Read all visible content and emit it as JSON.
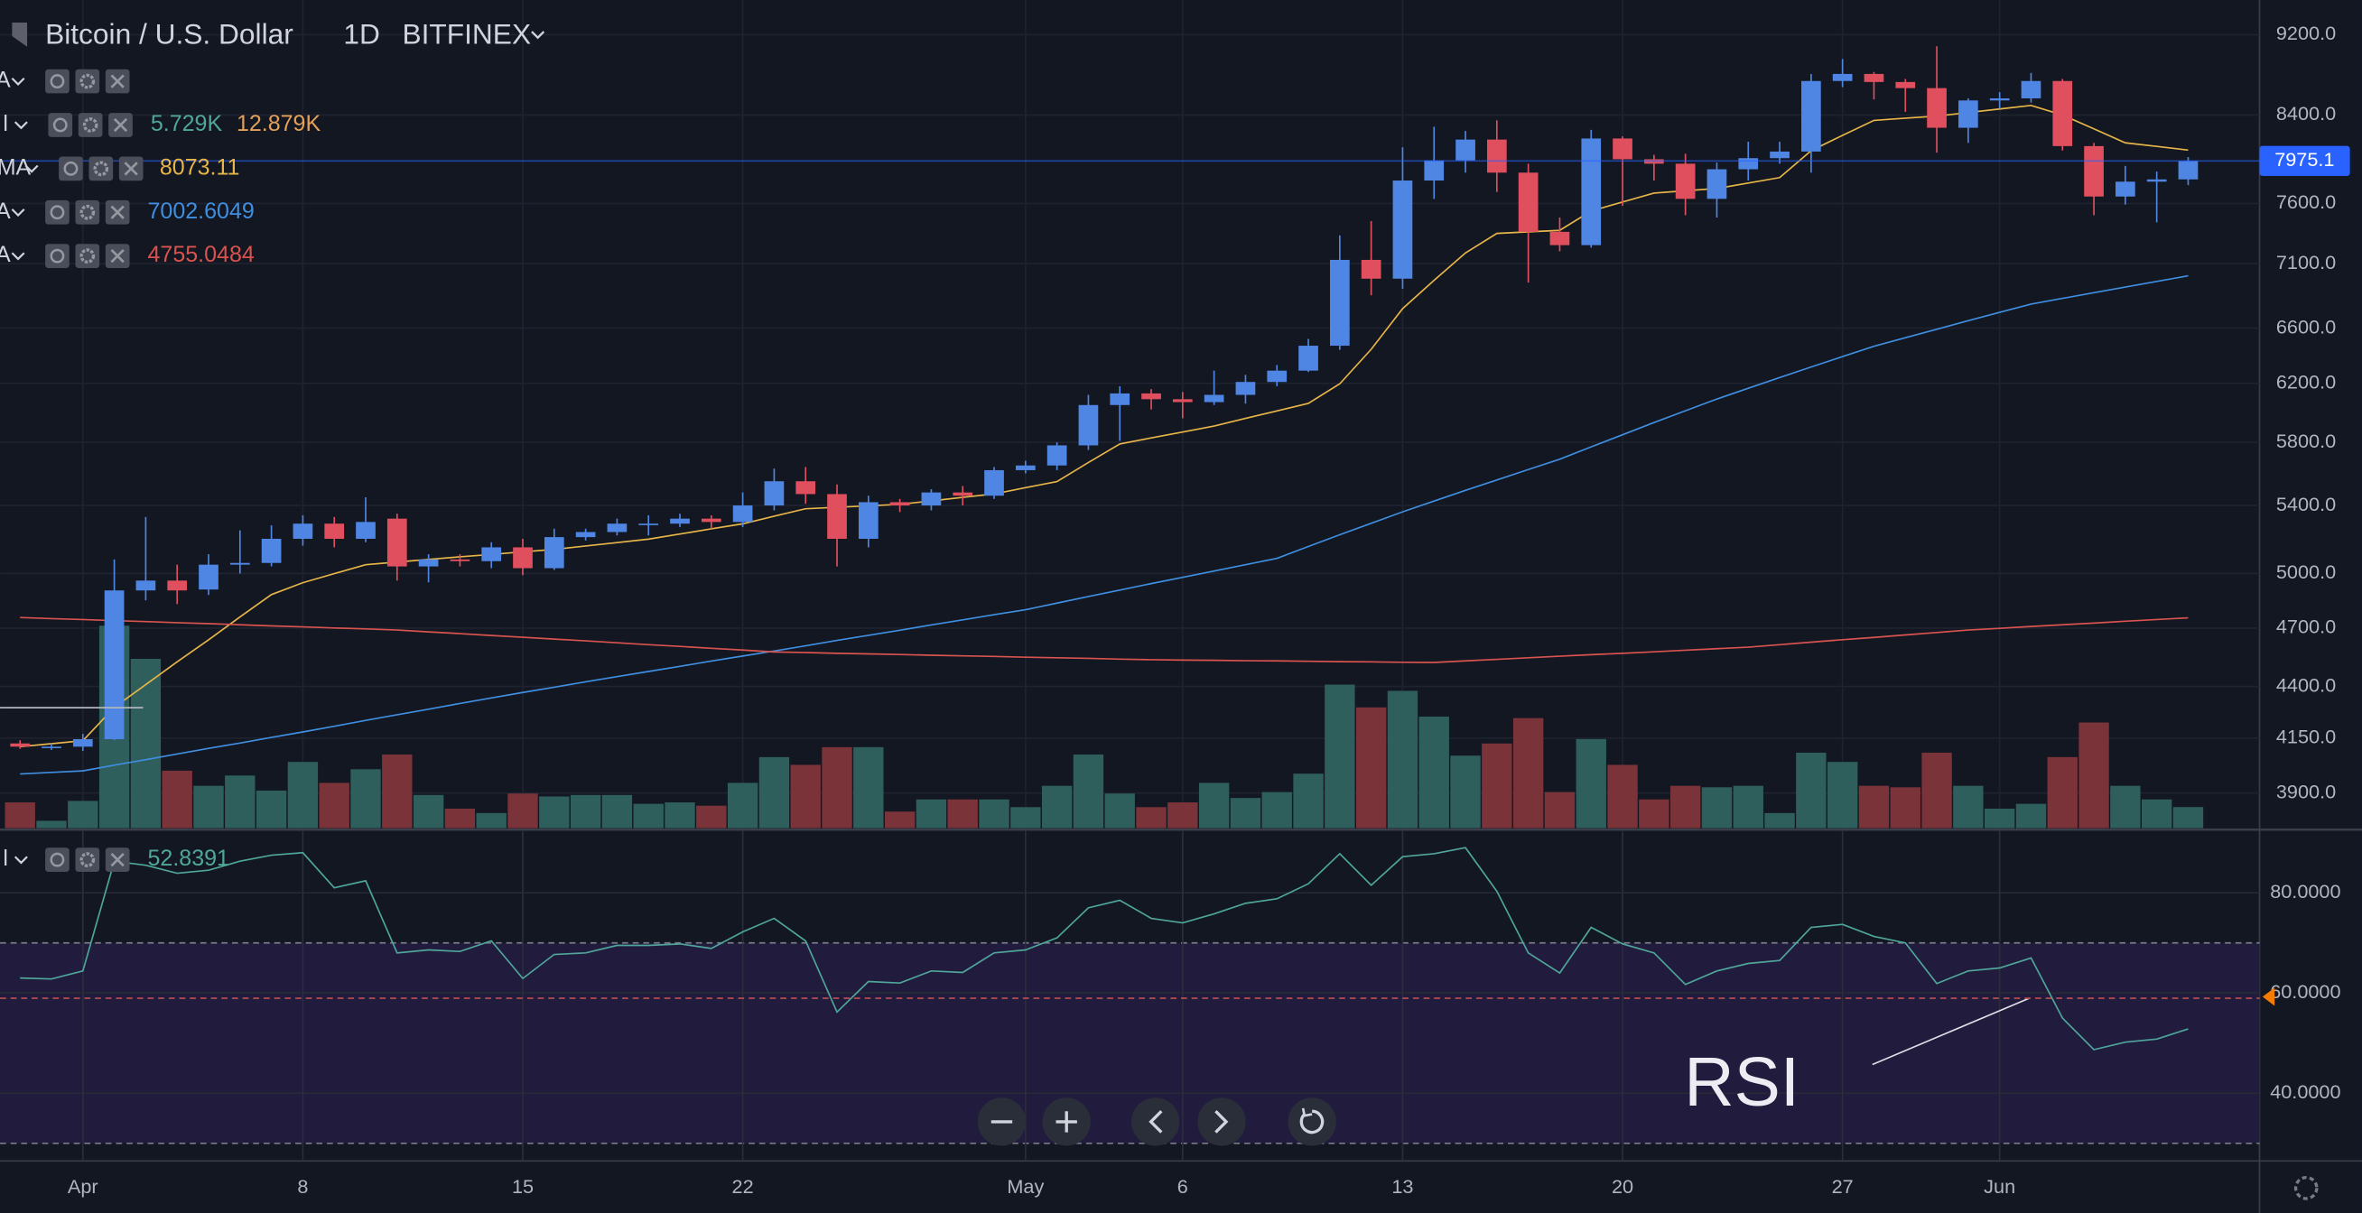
{
  "chart_data": [
    {
      "type": "candlestick",
      "title": "Bitcoin / U.S. Dollar",
      "interval": "1D",
      "exchange": "BITFINEX",
      "hidden_indicator": {
        "name": "A"
      },
      "categories": [
        null,
        null,
        "Apr",
        null,
        null,
        null,
        null,
        null,
        null,
        "8",
        null,
        null,
        null,
        null,
        null,
        null,
        "15",
        null,
        null,
        null,
        null,
        null,
        null,
        "22",
        null,
        null,
        null,
        null,
        null,
        null,
        null,
        null,
        "May",
        null,
        null,
        null,
        null,
        "6",
        null,
        null,
        null,
        null,
        null,
        null,
        "13",
        null,
        null,
        null,
        null,
        null,
        null,
        "20",
        null,
        null,
        null,
        null,
        null,
        null,
        "27",
        null,
        null,
        null,
        null,
        "Jun",
        null,
        null,
        null,
        null,
        null,
        null
      ],
      "open": [
        4125,
        4105,
        4110,
        4145,
        4905,
        4960,
        4910,
        5050,
        5060,
        5200,
        5290,
        5200,
        5320,
        5040,
        5080,
        5070,
        5150,
        5030,
        5210,
        5240,
        5290,
        5290,
        5320,
        5300,
        5400,
        5550,
        5470,
        5200,
        5420,
        5400,
        5480,
        5460,
        5620,
        5650,
        5780,
        6050,
        6130,
        6090,
        6070,
        6120,
        6210,
        6290,
        6470,
        7130,
        6980,
        7800,
        7980,
        8170,
        7870,
        7360,
        7250,
        8180,
        7990,
        7950,
        7640,
        7900,
        8000,
        8060,
        8730,
        8800,
        8720,
        8660,
        8280,
        8540,
        8560,
        8730,
        8110,
        7660,
        7790,
        7810
      ],
      "high": [
        4140,
        4125,
        4170,
        5080,
        5330,
        5050,
        5110,
        5250,
        5280,
        5340,
        5330,
        5450,
        5350,
        5110,
        5110,
        5180,
        5200,
        5260,
        5260,
        5320,
        5340,
        5350,
        5340,
        5480,
        5630,
        5640,
        5530,
        5460,
        5440,
        5500,
        5520,
        5640,
        5680,
        5800,
        6120,
        6180,
        6160,
        6140,
        6290,
        6260,
        6330,
        6520,
        7330,
        7450,
        8100,
        8290,
        8250,
        8350,
        7950,
        7480,
        8260,
        8200,
        8030,
        8040,
        7960,
        8150,
        8150,
        8800,
        8950,
        8820,
        8750,
        9080,
        8560,
        8620,
        8810,
        8750,
        8140,
        7930,
        7880,
        8010
      ],
      "low": [
        4100,
        4095,
        4090,
        4140,
        4850,
        4830,
        4880,
        5000,
        5040,
        5160,
        5150,
        5180,
        4960,
        4950,
        5040,
        5030,
        4990,
        5020,
        5190,
        5220,
        5220,
        5270,
        5260,
        5270,
        5370,
        5410,
        5040,
        5150,
        5360,
        5370,
        5400,
        5440,
        5600,
        5620,
        5750,
        5810,
        6020,
        5960,
        6050,
        6060,
        6180,
        6280,
        6440,
        6850,
        6900,
        7640,
        7870,
        7700,
        6950,
        7200,
        7230,
        7580,
        7800,
        7500,
        7480,
        7800,
        7950,
        7870,
        8670,
        8550,
        8430,
        8050,
        8140,
        8460,
        8520,
        8070,
        7500,
        7590,
        7440,
        7760
      ],
      "close": [
        4110,
        4110,
        4145,
        4905,
        4960,
        4905,
        5050,
        5060,
        5200,
        5290,
        5200,
        5300,
        5040,
        5080,
        5070,
        5150,
        5030,
        5210,
        5240,
        5290,
        5290,
        5320,
        5300,
        5400,
        5550,
        5470,
        5200,
        5420,
        5400,
        5480,
        5460,
        5620,
        5650,
        5780,
        6050,
        6130,
        6090,
        6070,
        6120,
        6210,
        6290,
        6470,
        7130,
        6980,
        7800,
        7980,
        8170,
        7870,
        7360,
        7250,
        8180,
        7990,
        7950,
        7640,
        7900,
        8000,
        8060,
        8730,
        8800,
        8720,
        8660,
        8280,
        8540,
        8560,
        8730,
        8110,
        7660,
        7790,
        7810,
        7975.1
      ],
      "up_color": "#4f86e3",
      "down_color": "#e04f5d",
      "yscale": "log",
      "ylim": [
        3748,
        9568
      ],
      "yticks": [
        {
          "value": 9200,
          "label": "9200.0"
        },
        {
          "value": 8400,
          "label": "8400.0"
        },
        {
          "value": 7600,
          "label": "7600.0"
        },
        {
          "value": 7100,
          "label": "7100.0"
        },
        {
          "value": 6600,
          "label": "6600.0"
        },
        {
          "value": 6200,
          "label": "6200.0"
        },
        {
          "value": 5800,
          "label": "5800.0"
        },
        {
          "value": 5400,
          "label": "5400.0"
        },
        {
          "value": 5000,
          "label": "5000.0"
        },
        {
          "value": 4700,
          "label": "4700.0"
        },
        {
          "value": 4400,
          "label": "4400.0"
        },
        {
          "value": 4150,
          "label": "4150.0"
        },
        {
          "value": 3900,
          "label": "3900.0"
        }
      ],
      "grid": true,
      "price_line_color": "#2962ff",
      "volume": {
        "name": "l",
        "values": [
          7,
          2,
          7.4,
          55,
          46,
          15.6,
          11.5,
          14.3,
          10.2,
          18,
          12.3,
          16,
          20,
          9,
          5.3,
          4.1,
          9.4,
          8.6,
          9,
          9,
          6.6,
          7,
          6.1,
          12.3,
          19.3,
          17.2,
          22,
          22,
          4.5,
          7.8,
          7.8,
          7.8,
          5.7,
          11.5,
          20,
          9.4,
          5.7,
          7,
          12.3,
          8.2,
          9.8,
          14.8,
          39,
          32.8,
          37.3,
          30.3,
          19.7,
          23,
          29.9,
          9.8,
          24.2,
          17.2,
          7.8,
          11.5,
          11.1,
          11.5,
          4.1,
          20.5,
          18,
          11.5,
          11.1,
          20.5,
          11.5,
          5.3,
          6.6,
          19.3,
          28.7,
          11.5,
          7.8,
          5.729
        ],
        "last_label": "5.729K",
        "ma_label": "12.879K",
        "vlim": [
          0,
          225
        ],
        "up_color": "#2f5f5d",
        "down_color": "#7a3439",
        "label_color": "#4fa69a",
        "ma_color": "#e3a05a"
      },
      "series": [
        {
          "name": "MA",
          "color": "#e7b548",
          "values": [
            4110,
            4124,
            4138,
            4297,
            4409,
            4524,
            4638,
            4760,
            4882,
            4948,
            4999,
            5050,
            5065,
            5080,
            5095,
            5109,
            5124,
            5138,
            5158,
            5178,
            5198,
            5228,
            5259,
            5289,
            5335,
            5380,
            5389,
            5398,
            5407,
            5428,
            5450,
            5471,
            5510,
            5548,
            5669,
            5789,
            5829,
            5868,
            5908,
            5959,
            6010,
            6061,
            6197,
            6444,
            6747,
            6967,
            7186,
            7347,
            7360,
            7372,
            7536,
            7613,
            7690,
            7710,
            7730,
            7778,
            7826,
            8068,
            8209,
            8349,
            8370,
            8390,
            8424,
            8458,
            8492,
            8400,
            8270,
            8140,
            8107,
            8073.11
          ]
        },
        {
          "name": "A",
          "color": "#3f8ee0",
          "values": [
            3985,
            3992,
            3999,
            4025,
            4050,
            4076,
            4102,
            4127,
            4153,
            4179,
            4206,
            4234,
            4261,
            4288,
            4316,
            4343,
            4370,
            4396,
            4423,
            4449,
            4475,
            4501,
            4528,
            4554,
            4580,
            4607,
            4635,
            4662,
            4689,
            4717,
            4744,
            4772,
            4799,
            4835,
            4871,
            4907,
            4943,
            4978,
            5014,
            5050,
            5086,
            5155,
            5224,
            5292,
            5361,
            5427,
            5493,
            5558,
            5624,
            5690,
            5770,
            5850,
            5931,
            6011,
            6091,
            6166,
            6241,
            6316,
            6391,
            6466,
            6529,
            6592,
            6656,
            6719,
            6782,
            6826,
            6870,
            6914,
            6958,
            7002.6049
          ]
        },
        {
          "name": "A",
          "color": "#d9534f",
          "values": [
            4757,
            4751,
            4746,
            4740,
            4735,
            4729,
            4724,
            4718,
            4712,
            4707,
            4701,
            4696,
            4690,
            4680,
            4671,
            4661,
            4652,
            4642,
            4633,
            4623,
            4613,
            4604,
            4594,
            4585,
            4575,
            4572,
            4568,
            4565,
            4562,
            4558,
            4555,
            4552,
            4548,
            4545,
            4542,
            4538,
            4535,
            4533,
            4532,
            4530,
            4529,
            4527,
            4525,
            4524,
            4522,
            4521,
            4529,
            4537,
            4545,
            4553,
            4561,
            4568,
            4576,
            4584,
            4592,
            4600,
            4613,
            4626,
            4639,
            4651,
            4664,
            4677,
            4690,
            4699,
            4709,
            4718,
            4727,
            4737,
            4746,
            4755.0484
          ]
        }
      ],
      "annotation": "RSI"
    },
    {
      "type": "line",
      "name": "l",
      "color": "#4fa69a",
      "values": [
        63,
        62.8,
        64.4,
        86.3,
        85.5,
        83.9,
        84.5,
        86.3,
        87.5,
        88,
        81,
        82.4,
        68,
        68.6,
        68.3,
        70.4,
        62.9,
        67.7,
        68,
        69.5,
        69.5,
        69.8,
        68.9,
        72.2,
        74.9,
        70.4,
        56.2,
        62.3,
        62,
        64.4,
        64.1,
        68,
        68.6,
        71,
        77,
        78.5,
        74.9,
        74,
        75.8,
        77.9,
        78.8,
        81.8,
        87.8,
        81.5,
        87.2,
        87.8,
        89,
        80.3,
        68,
        64,
        73.1,
        69.8,
        68,
        61.7,
        64.4,
        65.9,
        66.5,
        73.1,
        73.7,
        71.3,
        70,
        61.9,
        64.4,
        65,
        67,
        55,
        48.7,
        50.2,
        50.8,
        52.8391
      ],
      "ylim": [
        26.5,
        92.3
      ],
      "yticks": [
        {
          "value": 80,
          "label": "80.0000"
        },
        {
          "value": 60,
          "label": "60.0000"
        },
        {
          "value": 40,
          "label": "40.0000"
        }
      ],
      "bands": [
        30,
        70
      ],
      "band_color": "#211b3d",
      "grid": true
    }
  ]
}
